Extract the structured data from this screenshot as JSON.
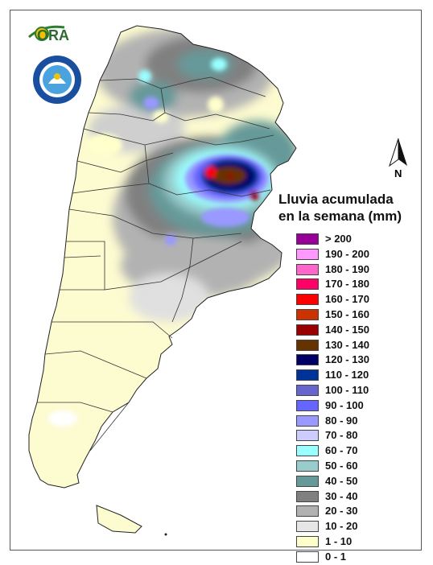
{
  "map": {
    "title_line1": "Lluvia acumulada",
    "title_line2": "en la semana (mm)",
    "north_label": "N",
    "logo_text": "ORA",
    "legend": [
      {
        "label": "> 200",
        "color": "#990099"
      },
      {
        "label": "190 - 200",
        "color": "#ff99ff"
      },
      {
        "label": "180 - 190",
        "color": "#ff66cc"
      },
      {
        "label": "170 - 180",
        "color": "#ff0066"
      },
      {
        "label": "160 - 170",
        "color": "#ff0000"
      },
      {
        "label": "150 - 160",
        "color": "#cc3300"
      },
      {
        "label": "140 - 150",
        "color": "#990000"
      },
      {
        "label": "130 - 140",
        "color": "#663300"
      },
      {
        "label": "120 - 130",
        "color": "#000066"
      },
      {
        "label": "110 - 120",
        "color": "#003399"
      },
      {
        "label": "100 - 110",
        "color": "#6666cc"
      },
      {
        "label": "90 - 100",
        "color": "#6666ff"
      },
      {
        "label": "80 - 90",
        "color": "#9999ff"
      },
      {
        "label": "70 - 80",
        "color": "#ccccff"
      },
      {
        "label": "60 - 70",
        "color": "#99ffff"
      },
      {
        "label": "50 - 60",
        "color": "#99cccc"
      },
      {
        "label": "40 - 50",
        "color": "#669999"
      },
      {
        "label": "30 - 40",
        "color": "#808080"
      },
      {
        "label": "20 - 30",
        "color": "#b2b2b2"
      },
      {
        "label": "10 - 20",
        "color": "#e6e6e6"
      },
      {
        "label": "1 - 10",
        "color": "#ffffcc"
      },
      {
        "label": "0 - 1",
        "color": "#ffffff"
      }
    ]
  }
}
